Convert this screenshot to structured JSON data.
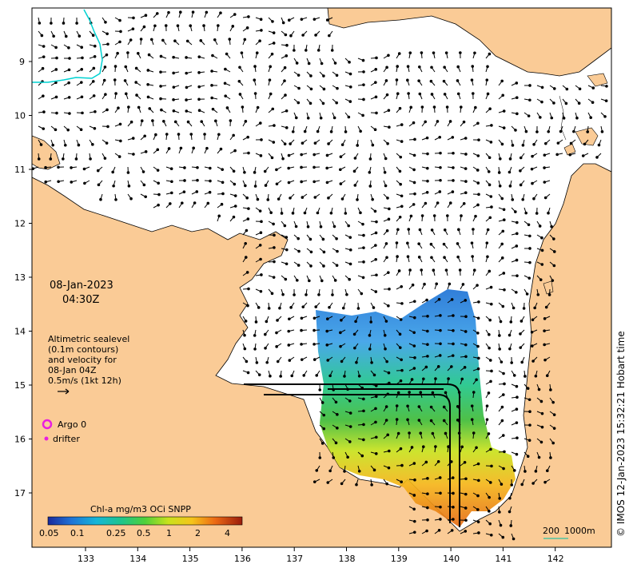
{
  "map": {
    "datetime_date": "08-Jan-2023",
    "datetime_time": "04:30Z",
    "info_lines": [
      "Altimetric sealevel",
      "(0.1m contours)",
      "and velocity for",
      "08-Jan 04Z",
      "0.5m/s (1kt 12h)"
    ],
    "legend_argo": "Argo 0",
    "legend_drifter": "drifter",
    "colorbar_title": "Chl-a mg/m3 OCi SNPP",
    "colorbar_ticks": [
      "0.05",
      "0.1",
      "0.25",
      "0.5",
      "1",
      "2",
      "4"
    ],
    "scale_bar_label": "200",
    "scale_bar_depth": "1000m",
    "credit": "© IMOS 12-Jan-2023 15:32:21 Hobart time",
    "lon_ticks": [
      "133",
      "134",
      "135",
      "136",
      "137",
      "138",
      "139",
      "140",
      "141",
      "142"
    ],
    "lat_ticks": [
      "9",
      "10",
      "11",
      "12",
      "13",
      "14",
      "15",
      "16",
      "17"
    ],
    "colors": {
      "land": "#FACB96",
      "ocean": "#FFFFFF",
      "argo": "#E91EE0",
      "contour": "#00D2D2",
      "scale": "#4FC3A1"
    }
  }
}
